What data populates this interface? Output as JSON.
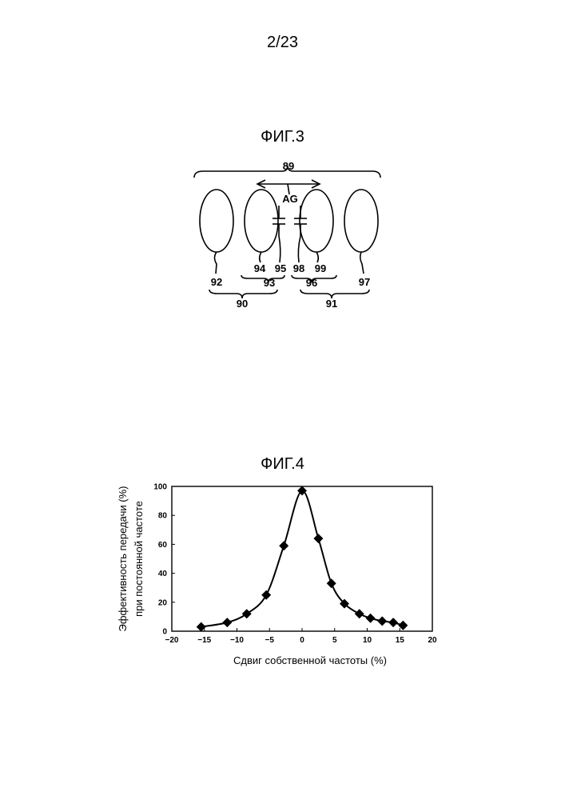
{
  "page_number": "2/23",
  "figures": {
    "fig3": {
      "title": "ФИГ.3",
      "labels": {
        "l89": "89",
        "ag": "AG",
        "l92": "92",
        "l93": "93",
        "l94": "94",
        "l95": "95",
        "l96": "96",
        "l97": "97",
        "l98": "98",
        "l99": "99",
        "l90": "90",
        "l91": "91"
      }
    },
    "fig4": {
      "title": "ФИГ.4"
    }
  },
  "chart_data": {
    "type": "line",
    "title": "ФИГ.4",
    "xlabel": "Сдвиг собственной частоты (%)",
    "ylabel_lines": [
      "Эффективность передачи (%)",
      "при постоянной частоте"
    ],
    "xlim": [
      -20,
      20
    ],
    "ylim": [
      0,
      100
    ],
    "xticks": [
      -20,
      -15,
      -10,
      -5,
      0,
      5,
      10,
      15,
      20
    ],
    "yticks": [
      0,
      20,
      40,
      60,
      80,
      100
    ],
    "grid": false,
    "marker": "diamond",
    "series": [
      {
        "x": [
          -15.5,
          -11.5,
          -8.5,
          -5.5,
          -2.8,
          0,
          2.5,
          4.5,
          6.5,
          8.8,
          10.5,
          12.3,
          14,
          15.5
        ],
        "y": [
          3,
          6,
          12,
          25,
          59,
          97,
          64,
          33,
          19,
          12,
          9,
          7,
          6,
          4
        ]
      }
    ]
  }
}
